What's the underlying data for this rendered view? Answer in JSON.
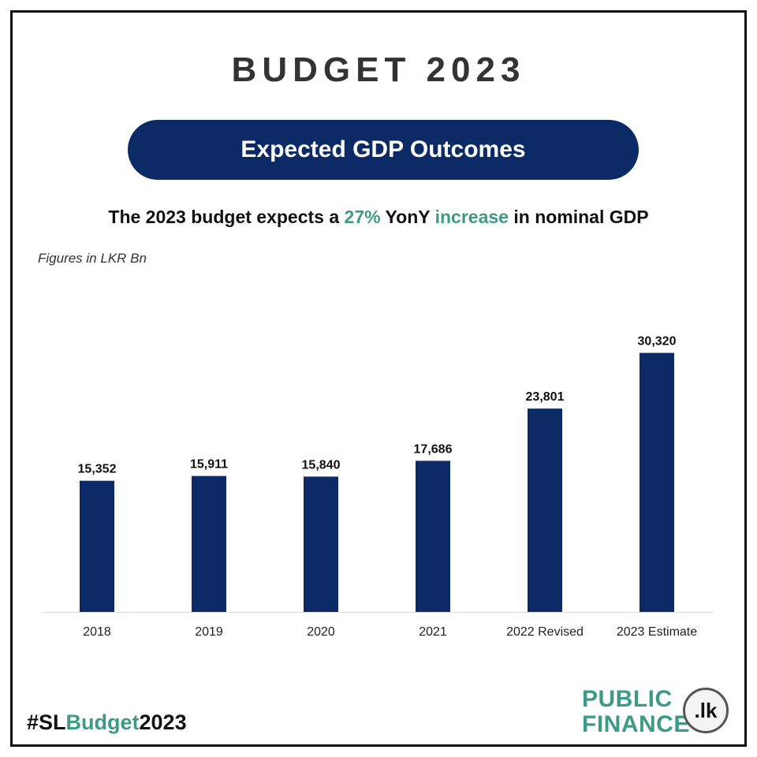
{
  "title": "BUDGET 2023",
  "banner": "Expected GDP Outcomes",
  "subtitle": {
    "part1": "The 2023 budget expects a ",
    "highlight1": "27%",
    "part2": " YonY ",
    "highlight2": "increase",
    "part3": " in nominal GDP"
  },
  "units_note": "Figures in LKR Bn",
  "hashtag": {
    "prefix": "#SL",
    "accent": "Budget",
    "suffix": "2023"
  },
  "logo": {
    "line1": "PUBLIC",
    "line2": "FINANCE",
    "seal": ".lk"
  },
  "colors": {
    "bar": "#0b2a66",
    "accent": "#3e9a86",
    "banner": "#0b2a66"
  },
  "chart_data": {
    "type": "bar",
    "categories": [
      "2018",
      "2019",
      "2020",
      "2021",
      "2022 Revised",
      "2023 Estimate"
    ],
    "values": [
      15352,
      15911,
      15840,
      17686,
      23801,
      30320
    ],
    "value_labels": [
      "15,352",
      "15,911",
      "15,840",
      "17,686",
      "23,801",
      "30,320"
    ],
    "xlabel": "",
    "ylabel": "",
    "ylim": [
      0,
      36000
    ],
    "grid": false,
    "legend": "none"
  }
}
